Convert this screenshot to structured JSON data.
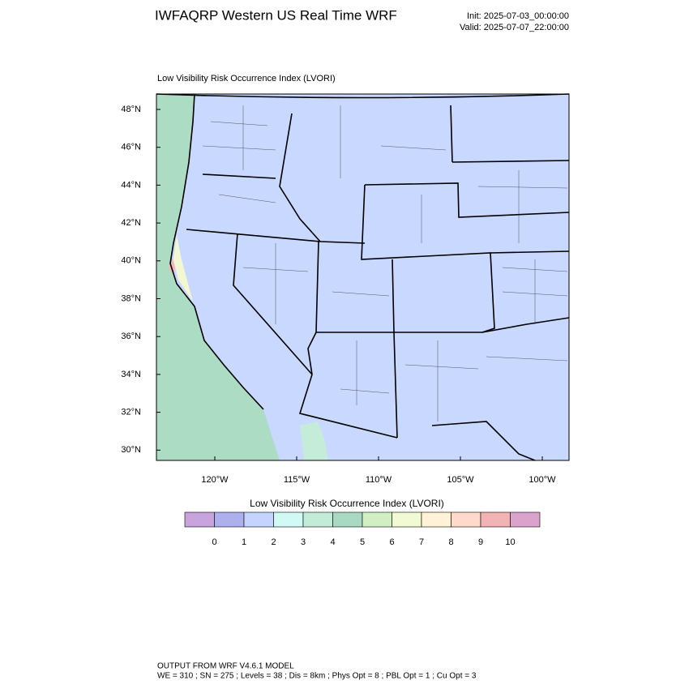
{
  "header": {
    "title": "IWFAQRP Western US Real Time WRF",
    "init": "Init: 2025-07-03_00:00:00",
    "valid": "Valid: 2025-07-07_22:00:00"
  },
  "map": {
    "subtitle": "Low Visibility Risk Occurrence Index   (LVORI)",
    "lat_labels": [
      "48°N",
      "46°N",
      "44°N",
      "42°N",
      "40°N",
      "38°N",
      "36°N",
      "34°N",
      "32°N",
      "30°N"
    ],
    "lon_labels": [
      "120°W",
      "115°W",
      "110°W",
      "105°W",
      "100°W"
    ]
  },
  "colorbar": {
    "title": "Low Visibility Risk Occurrence Index  (LVORI)",
    "labels": [
      "0",
      "1",
      "2",
      "3",
      "4",
      "5",
      "6",
      "7",
      "8",
      "9",
      "10"
    ],
    "colors": [
      "#c9a3dc",
      "#aeb0ee",
      "#c4d4ff",
      "#d2faf4",
      "#c2ecd8",
      "#a9d9c2",
      "#d2efc4",
      "#f2fad4",
      "#fff2d6",
      "#ffd9c9",
      "#f1b3b3",
      "#daa3cc"
    ]
  },
  "footer": {
    "line1": "OUTPUT FROM WRF V4.6.1 MODEL",
    "line2": "WE = 310 ; SN = 275 ; Levels = 38 ; Dis = 8km ; Phys Opt = 8 ; PBL Opt = 1 ; Cu Opt = 3"
  }
}
